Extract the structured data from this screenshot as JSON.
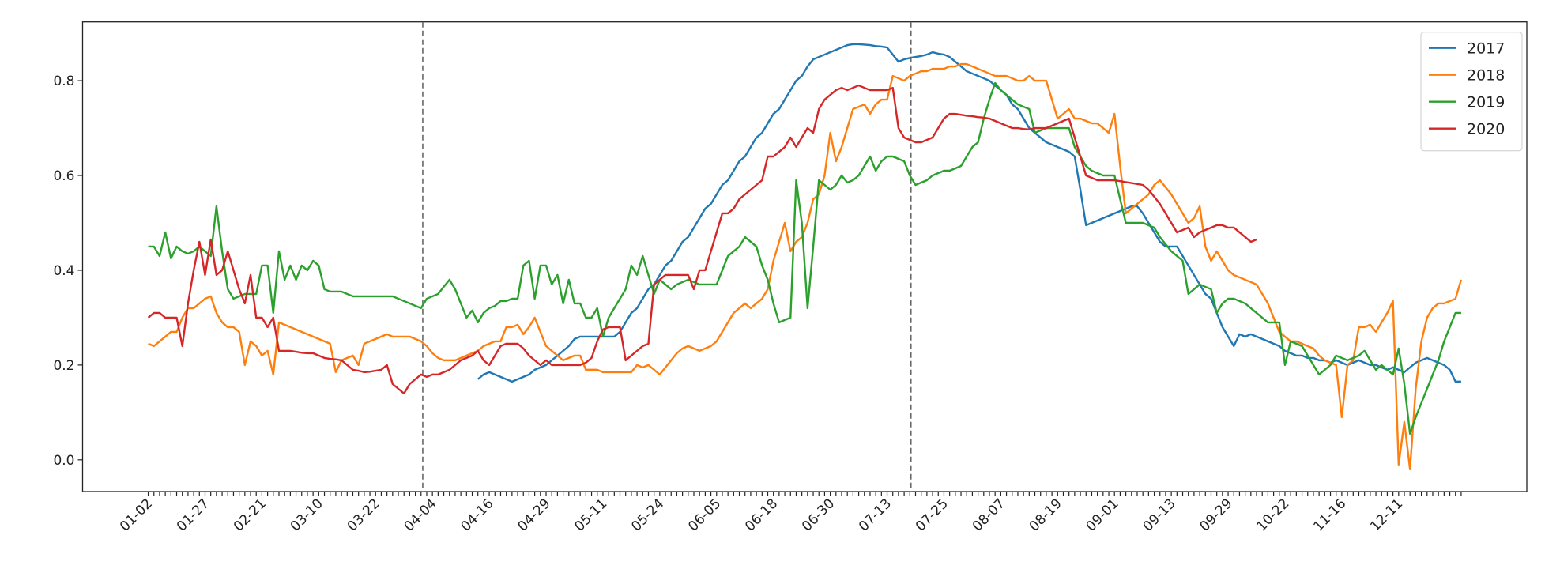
{
  "chart_data": {
    "type": "line",
    "categories": [
      "01-02",
      null,
      null,
      null,
      null,
      null,
      null,
      null,
      null,
      null,
      "01-27",
      null,
      null,
      null,
      null,
      null,
      null,
      null,
      null,
      null,
      "02-21",
      null,
      null,
      null,
      null,
      null,
      null,
      null,
      null,
      null,
      "03-10",
      null,
      null,
      null,
      null,
      null,
      null,
      null,
      null,
      null,
      "03-22",
      null,
      null,
      null,
      null,
      null,
      null,
      null,
      null,
      null,
      "04-04",
      null,
      null,
      null,
      null,
      null,
      null,
      null,
      null,
      null,
      "04-16",
      null,
      null,
      null,
      null,
      null,
      null,
      null,
      null,
      null,
      "04-29",
      null,
      null,
      null,
      null,
      null,
      null,
      null,
      null,
      null,
      "05-11",
      null,
      null,
      null,
      null,
      null,
      null,
      null,
      null,
      null,
      "05-24",
      null,
      null,
      null,
      null,
      null,
      null,
      null,
      null,
      null,
      "06-05",
      null,
      null,
      null,
      null,
      null,
      null,
      null,
      null,
      null,
      "06-18",
      null,
      null,
      null,
      null,
      null,
      null,
      null,
      null,
      null,
      "06-30",
      null,
      null,
      null,
      null,
      null,
      null,
      null,
      null,
      null,
      "07-13",
      null,
      null,
      null,
      null,
      null,
      null,
      null,
      null,
      null,
      "07-25",
      null,
      null,
      null,
      null,
      null,
      null,
      null,
      null,
      null,
      "08-07",
      null,
      null,
      null,
      null,
      null,
      null,
      null,
      null,
      null,
      "08-19",
      null,
      null,
      null,
      null,
      null,
      null,
      null,
      null,
      null,
      "09-01",
      null,
      null,
      null,
      null,
      null,
      null,
      null,
      null,
      null,
      "09-13",
      null,
      null,
      null,
      null,
      null,
      null,
      null,
      null,
      null,
      "09-29",
      null,
      null,
      null,
      null,
      null,
      null,
      null,
      null,
      null,
      "10-22",
      null,
      null,
      null,
      null,
      null,
      null,
      null,
      null,
      null,
      "11-16",
      null,
      null,
      null,
      null,
      null,
      null,
      null,
      null,
      null,
      "12-11",
      null,
      null,
      null,
      null,
      null,
      null,
      null,
      null,
      null,
      null,
      null
    ],
    "series": [
      {
        "name": "2017",
        "color": "#1f77b4",
        "values": [
          null,
          null,
          null,
          null,
          null,
          null,
          null,
          null,
          null,
          null,
          null,
          null,
          null,
          null,
          null,
          null,
          null,
          null,
          null,
          null,
          null,
          null,
          null,
          null,
          null,
          null,
          null,
          null,
          null,
          null,
          null,
          null,
          null,
          null,
          null,
          null,
          null,
          null,
          null,
          null,
          null,
          null,
          null,
          null,
          null,
          null,
          null,
          null,
          null,
          null,
          null,
          null,
          null,
          null,
          null,
          null,
          null,
          null,
          0.17,
          0.18,
          0.185,
          0.18,
          0.175,
          0.17,
          0.165,
          0.17,
          0.175,
          0.18,
          0.19,
          0.195,
          0.2,
          0.21,
          0.22,
          0.23,
          0.24,
          0.255,
          0.26,
          0.26,
          0.26,
          0.26,
          0.26,
          0.26,
          0.26,
          0.27,
          0.29,
          0.31,
          0.32,
          0.34,
          0.36,
          0.37,
          0.39,
          0.41,
          0.42,
          0.44,
          0.46,
          0.47,
          0.49,
          0.51,
          0.53,
          0.54,
          0.56,
          0.58,
          0.59,
          0.61,
          0.63,
          0.64,
          0.66,
          0.68,
          0.69,
          0.71,
          0.73,
          0.74,
          0.76,
          0.78,
          0.8,
          0.81,
          0.83,
          0.845,
          0.85,
          0.855,
          0.86,
          0.865,
          0.87,
          0.875,
          0.877,
          0.877,
          0.876,
          0.875,
          0.873,
          0.872,
          0.87,
          0.855,
          0.84,
          0.845,
          0.848,
          0.85,
          0.852,
          0.855,
          0.86,
          0.857,
          0.855,
          0.85,
          0.84,
          0.83,
          0.82,
          0.815,
          0.81,
          0.805,
          0.8,
          0.79,
          0.78,
          0.77,
          0.75,
          0.74,
          0.72,
          0.7,
          0.69,
          0.68,
          0.67,
          0.665,
          0.66,
          0.655,
          0.65,
          0.64,
          0.57,
          0.495,
          0.5,
          0.505,
          0.51,
          0.515,
          0.52,
          0.525,
          0.53,
          0.535,
          0.535,
          0.52,
          0.5,
          0.48,
          0.46,
          0.45,
          0.45,
          0.45,
          0.43,
          0.41,
          0.39,
          0.37,
          0.35,
          0.34,
          0.31,
          0.28,
          0.26,
          0.24,
          0.265,
          0.26,
          0.265,
          0.26,
          0.255,
          0.25,
          0.245,
          0.24,
          0.23,
          0.225,
          0.22,
          0.22,
          0.215,
          0.215,
          0.21,
          0.21,
          0.205,
          0.21,
          0.205,
          0.2,
          0.205,
          0.21,
          0.205,
          0.2,
          0.2,
          0.195,
          0.19,
          0.195,
          0.19,
          0.185,
          0.195,
          0.205,
          0.21,
          0.215,
          0.21,
          0.205,
          0.2,
          0.19,
          0.165,
          0.165
        ]
      },
      {
        "name": "2018",
        "color": "#ff7f0e",
        "values": [
          0.245,
          0.24,
          0.25,
          0.26,
          0.27,
          0.27,
          0.3,
          0.32,
          0.32,
          0.33,
          0.34,
          0.345,
          0.31,
          0.29,
          0.28,
          0.28,
          0.27,
          0.2,
          0.25,
          0.24,
          0.22,
          0.23,
          0.18,
          0.29,
          0.285,
          0.28,
          0.275,
          0.27,
          0.265,
          0.26,
          0.255,
          0.25,
          0.245,
          0.185,
          0.21,
          0.215,
          0.22,
          0.2,
          0.245,
          0.25,
          0.255,
          0.26,
          0.265,
          0.26,
          0.26,
          0.26,
          0.26,
          0.255,
          0.25,
          0.24,
          0.225,
          0.215,
          0.21,
          0.21,
          0.21,
          0.215,
          0.22,
          0.225,
          0.23,
          0.24,
          0.245,
          0.25,
          0.25,
          0.28,
          0.28,
          0.285,
          0.265,
          0.28,
          0.3,
          0.27,
          0.24,
          0.23,
          0.22,
          0.21,
          0.215,
          0.22,
          0.22,
          0.19,
          0.19,
          0.19,
          0.185,
          0.185,
          0.185,
          0.185,
          0.185,
          0.185,
          0.2,
          0.195,
          0.2,
          0.19,
          0.18,
          0.195,
          0.21,
          0.225,
          0.235,
          0.24,
          0.235,
          0.23,
          0.235,
          0.24,
          0.25,
          0.27,
          0.29,
          0.31,
          0.32,
          0.33,
          0.32,
          0.33,
          0.34,
          0.36,
          0.42,
          0.46,
          0.5,
          0.44,
          0.46,
          0.47,
          0.5,
          0.55,
          0.56,
          0.6,
          0.69,
          0.63,
          0.66,
          0.7,
          0.74,
          0.745,
          0.75,
          0.73,
          0.75,
          0.76,
          0.76,
          0.81,
          0.805,
          0.8,
          0.81,
          0.815,
          0.82,
          0.82,
          0.825,
          0.825,
          0.825,
          0.83,
          0.83,
          0.835,
          0.835,
          0.83,
          0.825,
          0.82,
          0.815,
          0.81,
          0.81,
          0.81,
          0.805,
          0.8,
          0.8,
          0.81,
          0.8,
          0.8,
          0.8,
          0.76,
          0.72,
          0.73,
          0.74,
          0.72,
          0.72,
          0.715,
          0.71,
          0.71,
          0.7,
          0.69,
          0.73,
          0.62,
          0.52,
          0.53,
          0.54,
          0.55,
          0.56,
          0.58,
          0.59,
          0.575,
          0.56,
          0.54,
          0.52,
          0.5,
          0.51,
          0.535,
          0.45,
          0.42,
          0.44,
          0.42,
          0.4,
          0.39,
          0.385,
          0.38,
          0.375,
          0.37,
          0.35,
          0.33,
          0.3,
          0.27,
          0.26,
          0.25,
          0.25,
          0.245,
          0.24,
          0.235,
          0.22,
          0.21,
          0.205,
          0.2,
          0.09,
          0.2,
          0.21,
          0.28,
          0.28,
          0.285,
          0.27,
          0.29,
          0.31,
          0.335,
          -0.01,
          0.08,
          -0.02,
          0.15,
          0.25,
          0.3,
          0.32,
          0.33,
          0.33,
          0.335,
          0.34,
          0.38
        ]
      },
      {
        "name": "2019",
        "color": "#2ca02c",
        "values": [
          0.45,
          0.45,
          0.43,
          0.48,
          0.425,
          0.45,
          0.44,
          0.435,
          0.44,
          0.45,
          0.44,
          0.43,
          0.535,
          0.44,
          0.36,
          0.34,
          0.345,
          0.35,
          0.35,
          0.35,
          0.41,
          0.41,
          0.31,
          0.44,
          0.38,
          0.41,
          0.38,
          0.41,
          0.4,
          0.42,
          0.41,
          0.36,
          0.355,
          0.355,
          0.355,
          0.35,
          0.345,
          0.345,
          0.345,
          0.345,
          0.345,
          0.345,
          0.345,
          0.345,
          0.34,
          0.335,
          0.33,
          0.325,
          0.32,
          0.34,
          0.345,
          0.35,
          0.365,
          0.38,
          0.36,
          0.33,
          0.3,
          0.315,
          0.29,
          0.31,
          0.32,
          0.325,
          0.335,
          0.335,
          0.34,
          0.34,
          0.41,
          0.42,
          0.34,
          0.41,
          0.41,
          0.37,
          0.39,
          0.33,
          0.38,
          0.33,
          0.33,
          0.3,
          0.3,
          0.32,
          0.26,
          0.3,
          0.32,
          0.34,
          0.36,
          0.41,
          0.39,
          0.43,
          0.39,
          0.35,
          0.38,
          0.37,
          0.36,
          0.37,
          0.375,
          0.38,
          0.375,
          0.37,
          0.37,
          0.37,
          0.37,
          0.4,
          0.43,
          0.44,
          0.45,
          0.47,
          0.46,
          0.45,
          0.41,
          0.38,
          0.33,
          0.29,
          0.295,
          0.3,
          0.59,
          0.5,
          0.32,
          0.45,
          0.59,
          0.58,
          0.57,
          0.58,
          0.6,
          0.585,
          0.59,
          0.6,
          0.62,
          0.64,
          0.61,
          0.63,
          0.64,
          0.64,
          0.635,
          0.63,
          0.6,
          0.58,
          0.585,
          0.59,
          0.6,
          0.605,
          0.61,
          0.61,
          0.615,
          0.62,
          0.64,
          0.66,
          0.67,
          0.72,
          0.76,
          0.795,
          0.78,
          0.77,
          0.76,
          0.75,
          0.745,
          0.74,
          0.69,
          0.695,
          0.7,
          0.7,
          0.7,
          0.7,
          0.7,
          0.66,
          0.64,
          0.62,
          0.61,
          0.605,
          0.6,
          0.6,
          0.6,
          0.55,
          0.5,
          0.5,
          0.5,
          0.5,
          0.495,
          0.49,
          0.47,
          0.455,
          0.44,
          0.43,
          0.42,
          0.35,
          0.36,
          0.37,
          0.365,
          0.36,
          0.31,
          0.33,
          0.34,
          0.34,
          0.335,
          0.33,
          0.32,
          0.31,
          0.3,
          0.29,
          0.29,
          0.29,
          0.2,
          0.25,
          0.245,
          0.24,
          0.22,
          0.2,
          0.18,
          0.19,
          0.2,
          0.22,
          0.215,
          0.21,
          0.215,
          0.22,
          0.23,
          0.21,
          0.19,
          0.2,
          0.19,
          0.18,
          0.235,
          0.16,
          0.055,
          0.09,
          0.12,
          0.15,
          0.18,
          0.21,
          0.25,
          0.28,
          0.31,
          0.31
        ]
      },
      {
        "name": "2020",
        "color": "#d62728",
        "values": [
          0.3,
          0.31,
          0.31,
          0.3,
          0.3,
          0.3,
          0.24,
          0.33,
          0.4,
          0.46,
          0.39,
          0.465,
          0.39,
          0.4,
          0.44,
          0.4,
          0.36,
          0.33,
          0.39,
          0.3,
          0.3,
          0.28,
          0.3,
          0.23,
          0.23,
          0.23,
          0.228,
          0.226,
          0.225,
          0.225,
          0.22,
          0.215,
          0.213,
          0.212,
          0.21,
          0.2,
          0.19,
          0.188,
          0.185,
          0.186,
          0.188,
          0.19,
          0.2,
          0.16,
          0.15,
          0.14,
          0.16,
          0.17,
          0.18,
          0.175,
          0.18,
          0.18,
          0.185,
          0.19,
          0.2,
          0.21,
          0.215,
          0.22,
          0.23,
          0.21,
          0.2,
          0.22,
          0.24,
          0.245,
          0.245,
          0.245,
          0.235,
          0.22,
          0.21,
          0.2,
          0.21,
          0.2,
          0.2,
          0.2,
          0.2,
          0.2,
          0.2,
          0.205,
          0.215,
          0.25,
          0.275,
          0.28,
          0.28,
          0.28,
          0.21,
          0.22,
          0.23,
          0.24,
          0.245,
          0.37,
          0.38,
          0.39,
          0.39,
          0.39,
          0.39,
          0.39,
          0.36,
          0.4,
          0.4,
          0.44,
          0.48,
          0.52,
          0.52,
          0.53,
          0.55,
          0.56,
          0.57,
          0.58,
          0.59,
          0.64,
          0.64,
          0.65,
          0.66,
          0.68,
          0.66,
          0.68,
          0.7,
          0.69,
          0.74,
          0.76,
          0.77,
          0.78,
          0.785,
          0.78,
          0.785,
          0.79,
          0.785,
          0.78,
          0.78,
          0.78,
          0.78,
          0.785,
          0.7,
          0.68,
          0.675,
          0.67,
          0.67,
          0.675,
          0.68,
          0.7,
          0.72,
          0.73,
          0.73,
          0.728,
          0.726,
          0.725,
          0.723,
          0.722,
          0.72,
          0.715,
          0.71,
          0.705,
          0.7,
          0.7,
          0.698,
          0.697,
          0.7,
          0.7,
          0.7,
          0.705,
          0.71,
          0.715,
          0.72,
          0.68,
          0.64,
          0.6,
          0.595,
          0.59,
          0.59,
          0.59,
          0.59,
          0.588,
          0.586,
          0.584,
          0.582,
          0.58,
          0.57,
          0.555,
          0.54,
          0.52,
          0.5,
          0.48,
          0.485,
          0.49,
          0.47,
          0.48,
          0.485,
          0.49,
          0.495,
          0.495,
          0.49,
          0.49,
          0.48,
          0.47,
          0.46,
          0.465,
          null,
          null,
          null,
          null,
          null,
          null,
          null,
          null,
          null,
          null,
          null,
          null,
          null,
          null,
          null,
          null,
          null,
          null,
          null,
          null,
          null,
          null,
          null,
          null,
          null,
          null,
          null,
          null,
          null,
          null,
          null,
          null,
          null,
          null,
          null,
          null
        ]
      }
    ],
    "vlines": [
      48.3,
      134.2
    ],
    "ylim": [
      -0.067,
      0.924
    ],
    "yticks": [
      {
        "value": 0,
        "label": "0.0"
      },
      0.2,
      0.4,
      0.6,
      0.8
    ],
    "legend": "upper right"
  }
}
